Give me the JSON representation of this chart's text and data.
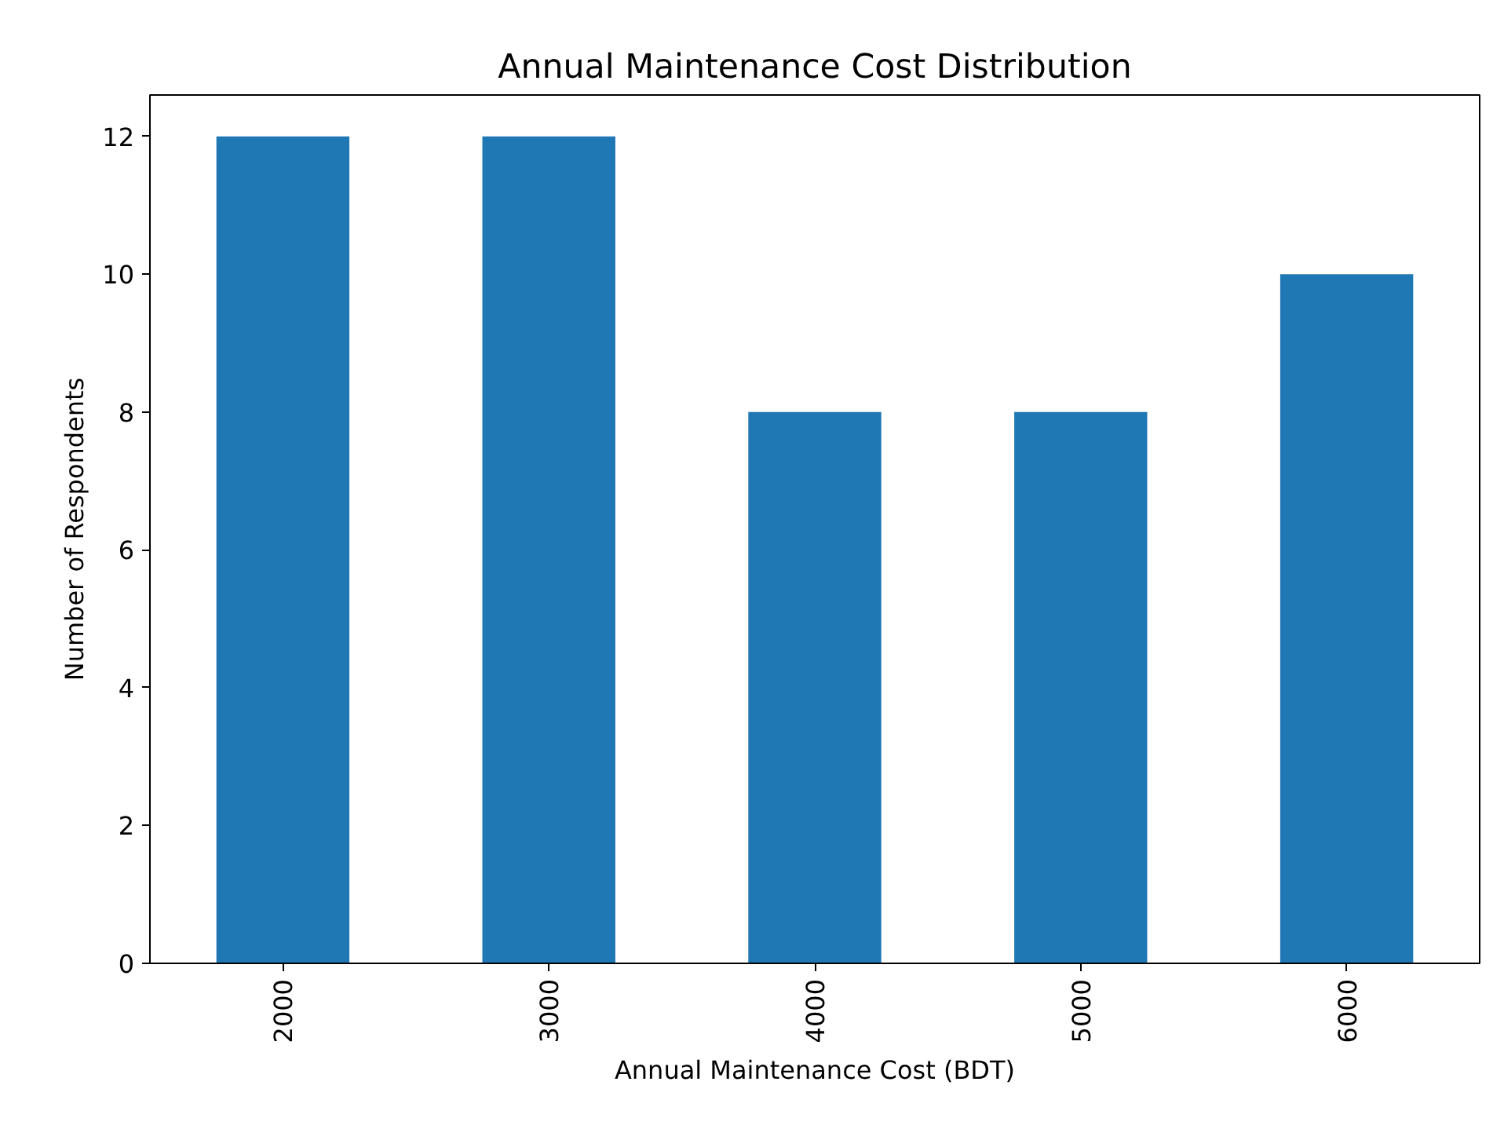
{
  "chart_data": {
    "type": "bar",
    "title": "Annual Maintenance Cost Distribution",
    "xlabel": "Annual Maintenance Cost (BDT)",
    "ylabel": "Number of Respondents",
    "categories": [
      "2000",
      "3000",
      "4000",
      "5000",
      "6000"
    ],
    "values": [
      12,
      12,
      8,
      8,
      10
    ],
    "color": "#1f77b4",
    "ylim": [
      0,
      12.6
    ],
    "yticks": [
      0,
      2,
      4,
      6,
      8,
      10,
      12
    ],
    "grid": false
  }
}
